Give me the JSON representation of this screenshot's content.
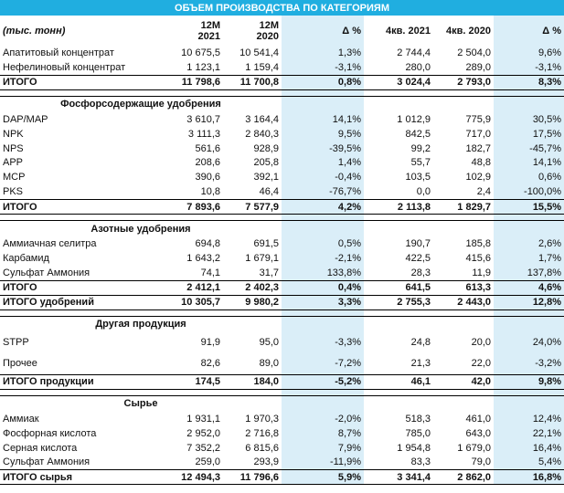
{
  "title": "ОБЪЕМ ПРОИЗВОДСТВА ПО КАТЕГОРИЯМ",
  "shade_color": "#daeef8",
  "banner_color": "#20aee0",
  "header": {
    "unit": "(тыс. тонн)",
    "c1a": "12M",
    "c1b": "2021",
    "c2a": "12M",
    "c2b": "2020",
    "c3": "Δ %",
    "c4": "4кв. 2021",
    "c5": "4кв. 2020",
    "c6": "Δ %"
  },
  "concentrates": {
    "rows": [
      [
        "Апатитовый концентрат",
        "10 675,5",
        "10 541,4",
        "1,3%",
        "2 744,4",
        "2 504,0",
        "9,6%"
      ],
      [
        "Нефелиновый концентрат",
        "1 123,1",
        "1 159,4",
        "-3,1%",
        "280,0",
        "289,0",
        "-3,1%"
      ]
    ],
    "total": [
      "ИТОГО",
      "11 798,6",
      "11 700,8",
      "0,8%",
      "3 024,4",
      "2 793,0",
      "8,3%"
    ]
  },
  "phosphate": {
    "title": "Фосфорсодержащие удобрения",
    "rows": [
      [
        "DAP/MAP",
        "3 610,7",
        "3 164,4",
        "14,1%",
        "1 012,9",
        "775,9",
        "30,5%"
      ],
      [
        "NPK",
        "3 111,3",
        "2 840,3",
        "9,5%",
        "842,5",
        "717,0",
        "17,5%"
      ],
      [
        "NPS",
        "561,6",
        "928,9",
        "-39,5%",
        "99,2",
        "182,7",
        "-45,7%"
      ],
      [
        "APP",
        "208,6",
        "205,8",
        "1,4%",
        "55,7",
        "48,8",
        "14,1%"
      ],
      [
        "MCP",
        "390,6",
        "392,1",
        "-0,4%",
        "103,5",
        "102,9",
        "0,6%"
      ],
      [
        "PKS",
        "10,8",
        "46,4",
        "-76,7%",
        "0,0",
        "2,4",
        "-100,0%"
      ]
    ],
    "total": [
      "ИТОГО",
      "7 893,6",
      "7 577,9",
      "4,2%",
      "2 113,8",
      "1 829,7",
      "15,5%"
    ]
  },
  "nitrogen": {
    "title": "Азотные удобрения",
    "rows": [
      [
        "Аммиачная селитра",
        "694,8",
        "691,5",
        "0,5%",
        "190,7",
        "185,8",
        "2,6%"
      ],
      [
        "Карбамид",
        "1 643,2",
        "1 679,1",
        "-2,1%",
        "422,5",
        "415,6",
        "1,7%"
      ],
      [
        "Сульфат Аммония",
        "74,1",
        "31,7",
        "133,8%",
        "28,3",
        "11,9",
        "137,8%"
      ]
    ],
    "total": [
      "ИТОГО",
      "2 412,1",
      "2 402,3",
      "0,4%",
      "641,5",
      "613,3",
      "4,6%"
    ],
    "total2": [
      "ИТОГО удобрений",
      "10 305,7",
      "9 980,2",
      "3,3%",
      "2 755,3",
      "2 443,0",
      "12,8%"
    ]
  },
  "other": {
    "title": "Другая продукция",
    "rows": [
      [
        "STPP",
        "91,9",
        "95,0",
        "-3,3%",
        "24,8",
        "20,0",
        "24,0%"
      ],
      [
        "Прочее",
        "82,6",
        "89,0",
        "-7,2%",
        "21,3",
        "22,0",
        "-3,2%"
      ]
    ],
    "total": [
      "ИТОГО продукции",
      "174,5",
      "184,0",
      "-5,2%",
      "46,1",
      "42,0",
      "9,8%"
    ]
  },
  "raw": {
    "title": "Сырье",
    "rows": [
      [
        "Аммиак",
        "1 931,1",
        "1 970,3",
        "-2,0%",
        "518,3",
        "461,0",
        "12,4%"
      ],
      [
        "Фосфорная кислота",
        "2 952,0",
        "2 716,8",
        "8,7%",
        "785,0",
        "643,0",
        "22,1%"
      ],
      [
        "Серная кислота",
        "7 352,2",
        "6 815,6",
        "7,9%",
        "1 954,8",
        "1 679,0",
        "16,4%"
      ],
      [
        "Сульфат Аммония",
        "259,0",
        "293,9",
        "-11,9%",
        "83,3",
        "79,0",
        "5,4%"
      ]
    ],
    "total": [
      "ИТОГО сырья",
      "12 494,3",
      "11 796,6",
      "5,9%",
      "3 341,4",
      "2 862,0",
      "16,8%"
    ]
  }
}
